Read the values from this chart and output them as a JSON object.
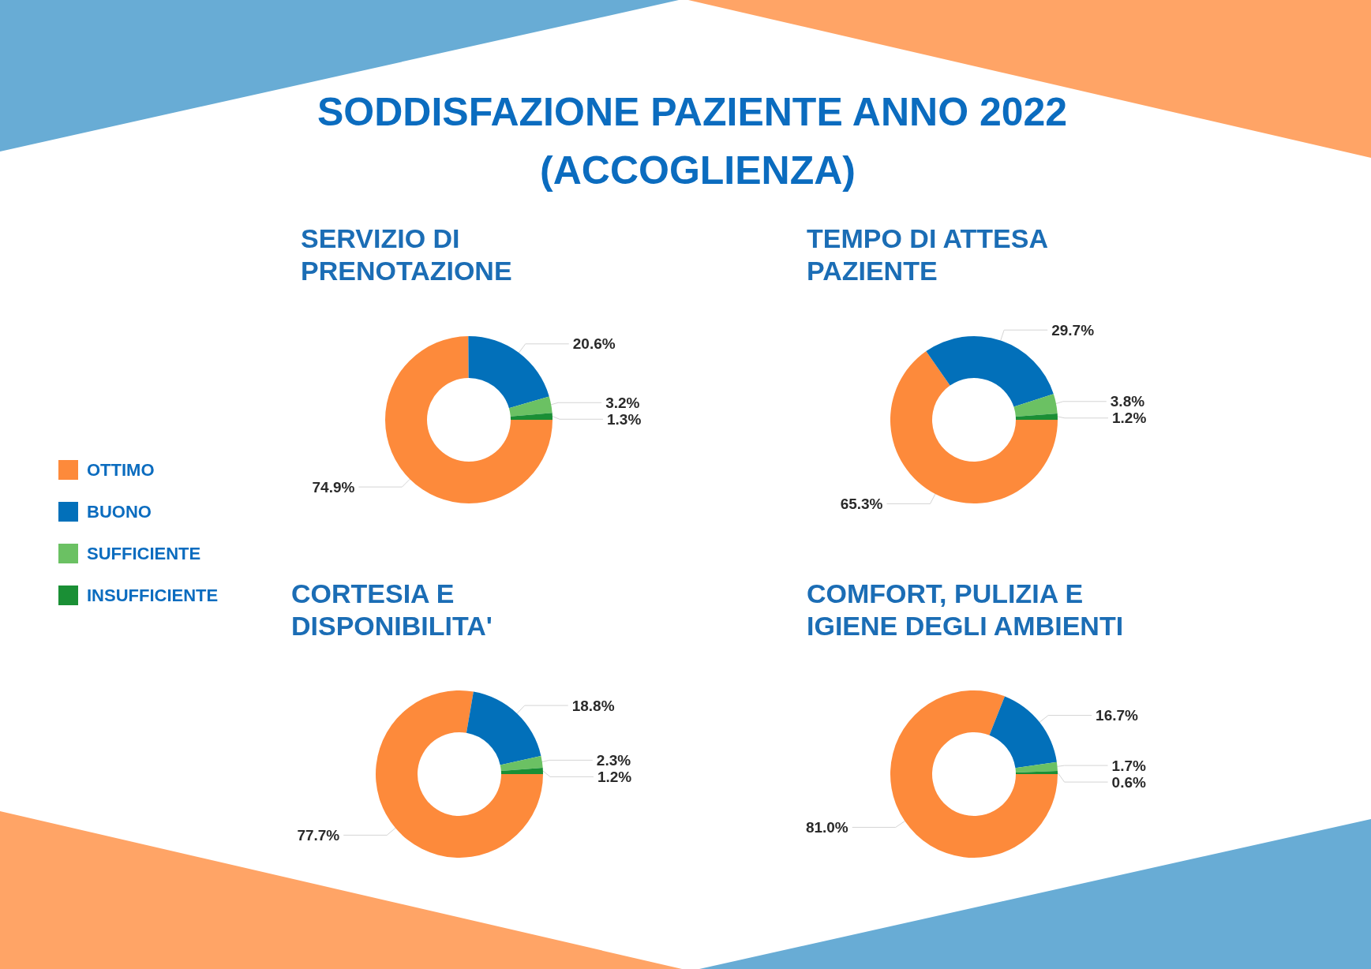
{
  "chart_data": {
    "type": "donut",
    "title": "SODDISFAZIONE PAZIENTE ANNO 2022 (ACCOGLIENZA)",
    "categories": [
      "OTTIMO",
      "BUONO",
      "SUFFICIENTE",
      "INSUFFICIENTE"
    ],
    "colors": [
      "#fd8a3b",
      "#0270ba",
      "#6bc163",
      "#1a8f35"
    ],
    "legend": "left",
    "series": [
      {
        "name": "SERVIZIO DI PRENOTAZIONE",
        "values": [
          74.9,
          20.6,
          3.2,
          1.3
        ],
        "value_labels": [
          "74.9%",
          "20.6%",
          "3.2%",
          "1.3%"
        ]
      },
      {
        "name": "TEMPO DI ATTESA PAZIENTE",
        "values": [
          65.3,
          29.7,
          3.8,
          1.2
        ],
        "value_labels": [
          "65.3%",
          "29.7%",
          "3.8%",
          "1.2%"
        ]
      },
      {
        "name": "CORTESIA E DISPONIBILITA'",
        "values": [
          77.7,
          18.8,
          2.3,
          1.2
        ],
        "value_labels": [
          "77.7%",
          "18.8%",
          "2.3%",
          "1.2%"
        ]
      },
      {
        "name": "COMFORT, PULIZIA E IGIENE DEGLI AMBIENTI",
        "values": [
          81.0,
          16.7,
          1.7,
          0.6
        ],
        "value_labels": [
          "81.0%",
          "16.7%",
          "1.7%",
          "0.6%"
        ]
      }
    ]
  }
}
